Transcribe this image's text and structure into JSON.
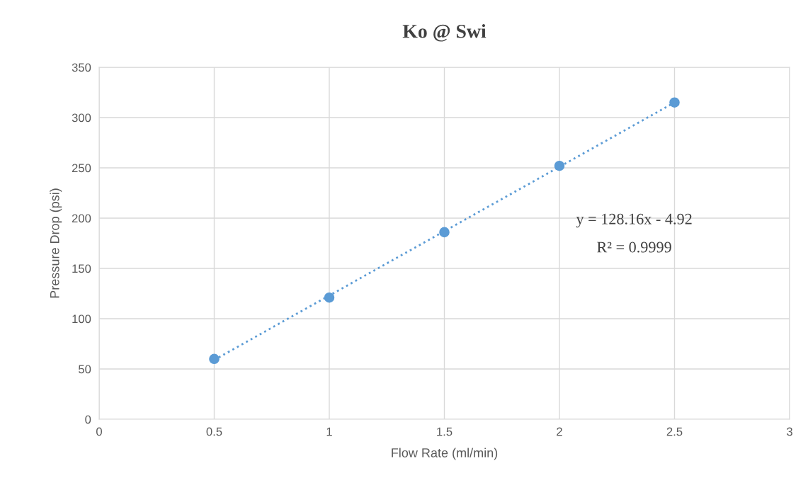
{
  "chart_data": {
    "type": "scatter",
    "title": "Ko @ Swi",
    "xlabel": "Flow Rate (ml/min)",
    "ylabel": "Pressure Drop (psi)",
    "x": [
      0.5,
      1,
      1.5,
      2,
      2.5
    ],
    "series": [
      {
        "color": "#5b9bd5",
        "values": [
          60,
          121,
          186,
          252,
          315
        ],
        "marker": "circle"
      },
      {
        "type": "line",
        "color": "#5b9bd5",
        "x": [
          0.5,
          2.5
        ],
        "values": [
          59,
          315
        ],
        "line_style": "dotted"
      }
    ],
    "annotations": [
      "y = 128.16x - 4.92",
      "R² = 0.9999"
    ],
    "xlim": [
      0,
      3
    ],
    "xticks": [
      0,
      0.5,
      1,
      1.5,
      2,
      2.5,
      3
    ],
    "ylim": [
      0,
      350
    ],
    "yticks": [
      0,
      50,
      100,
      150,
      200,
      250,
      300,
      350
    ],
    "grid": true
  }
}
